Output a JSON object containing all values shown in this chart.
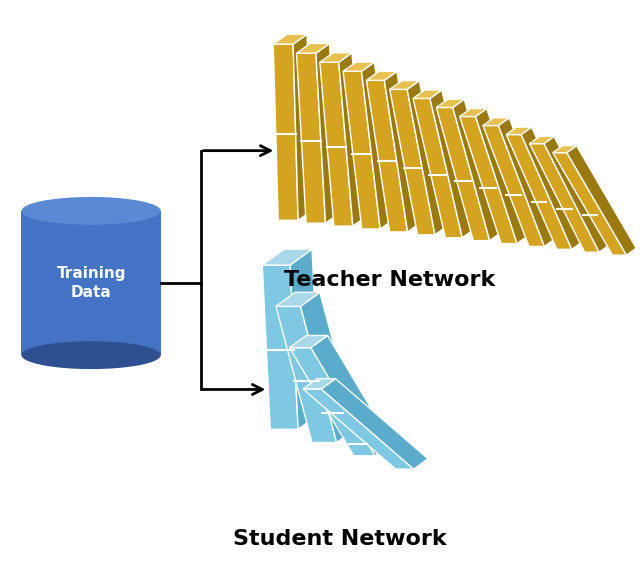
{
  "teacher_color_face": "#D4A420",
  "teacher_color_dark": "#9A7A10",
  "teacher_color_top": "#E8C050",
  "student_color_face": "#7EC8E3",
  "student_color_dark": "#5AABCC",
  "student_color_top": "#A8D8EA",
  "cylinder_color": "#4472C4",
  "cylinder_dark": "#2E5090",
  "cylinder_top": "#5A8AD4",
  "background": "#FFFFFF",
  "teacher_label": "Teacher Network",
  "student_label": "Student Network",
  "data_label": "Training\nData",
  "teacher_n_layers": 13,
  "student_n_layers": 4,
  "text_color": "#000000",
  "white": "#FFFFFF"
}
